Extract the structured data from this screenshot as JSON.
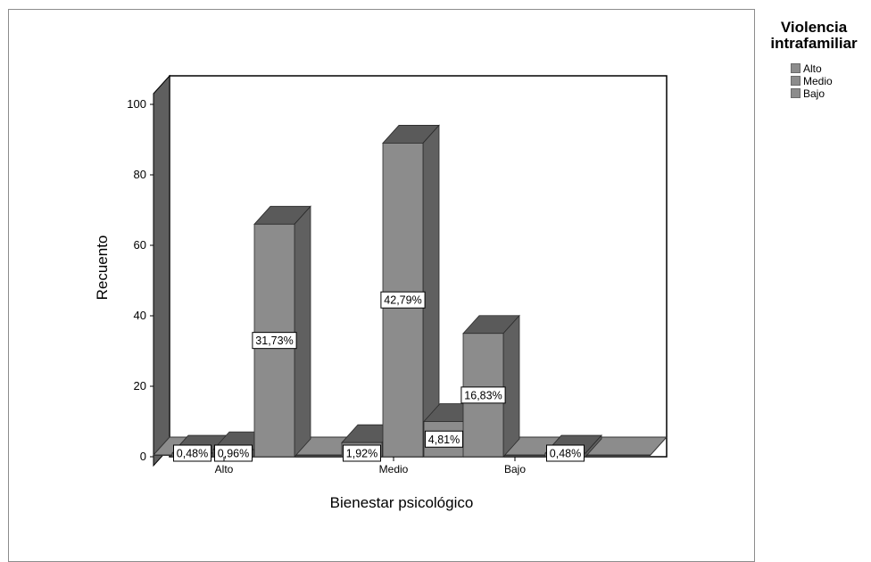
{
  "chart_data": {
    "type": "bar",
    "xlabel": "Bienestar psicológico",
    "ylabel": "Recuento",
    "ylim": [
      0,
      100
    ],
    "yticks": [
      0,
      20,
      40,
      60,
      80,
      100
    ],
    "categories": [
      "Alto",
      "Medio",
      "Bajo"
    ],
    "legend_title": "Violencia intrafamiliar",
    "legend_position": "top-right",
    "grid": false,
    "series": [
      {
        "name": "Alto",
        "values": [
          1,
          4,
          35
        ],
        "labels": [
          "0,48%",
          "1,92%",
          "16,83%"
        ]
      },
      {
        "name": "Medio",
        "values": [
          2,
          89,
          0
        ],
        "labels": [
          "0,96%",
          "42,79%",
          ""
        ]
      },
      {
        "name": "Bajo",
        "values": [
          66,
          10,
          1
        ],
        "labels": [
          "31,73%",
          "4,81%",
          "0,48%"
        ]
      }
    ],
    "colors": {
      "front": "#8c8c8c",
      "side": "#606060",
      "top": "#5a5a5a",
      "wall": "#5f5f5f",
      "label_bg": "#ffffff"
    }
  }
}
